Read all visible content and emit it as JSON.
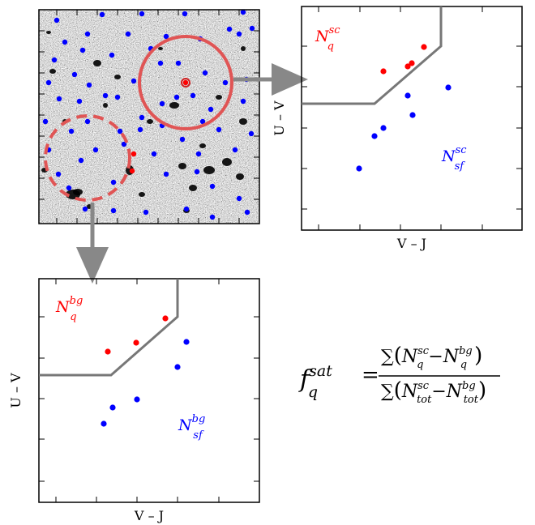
{
  "sky_image": {
    "description_icon": "starfield-image-icon"
  },
  "top_panel": {
    "xlabel": "V – J",
    "ylabel": "U – V",
    "quiescent_label": "N",
    "quiescent_sup": "sc",
    "quiescent_sub": "q",
    "starforming_label": "N",
    "starforming_sup": "sc",
    "starforming_sub": "sf",
    "quiescent_color": "#ff0000",
    "starforming_color": "#0000ff",
    "boundary_color": "#777777"
  },
  "bottom_panel": {
    "xlabel": "V – J",
    "ylabel": "U – V",
    "quiescent_label": "N",
    "quiescent_sup": "bg",
    "quiescent_sub": "q",
    "starforming_label": "N",
    "starforming_sup": "bg",
    "starforming_sub": "sf",
    "quiescent_color": "#ff0000",
    "starforming_color": "#0000ff",
    "boundary_color": "#777777"
  },
  "formula": {
    "lhs_f": "f",
    "lhs_sup": "sat",
    "lhs_sub": "q",
    "equals": "=",
    "num_sum": "∑",
    "num_N1": "N",
    "num_N1_sup": "sc",
    "num_N1_sub": "q",
    "num_minus": "−",
    "num_N2": "N",
    "num_N2_sup": "bg",
    "num_N2_sub": "q",
    "den_sum": "∑",
    "den_N1": "N",
    "den_N1_sup": "sc",
    "den_N1_sub": "tot",
    "den_minus": "−",
    "den_N2": "N",
    "den_N2_sup": "bg",
    "den_N2_sub": "tot"
  },
  "colors": {
    "circle_red": "#e05555",
    "arrow_gray": "#888888",
    "axis": "#000000"
  }
}
